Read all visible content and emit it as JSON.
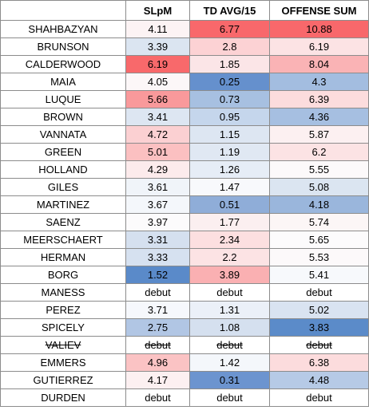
{
  "table": {
    "headers": [
      "",
      "SLpM",
      "TD AVG/15",
      "OFFENSE SUM"
    ],
    "rows": [
      {
        "name": "SHAHBAZYAN",
        "slpm": "4.11",
        "td": "6.77",
        "offense": "10.88",
        "colors": [
          "#fcf3f4",
          "#f8686b",
          "#f8686b"
        ]
      },
      {
        "name": "BRUNSON",
        "slpm": "3.39",
        "td": "2.8",
        "offense": "6.19",
        "colors": [
          "#dbe5f1",
          "#fcd2d4",
          "#fce3e4"
        ]
      },
      {
        "name": "CALDERWOOD",
        "slpm": "6.19",
        "td": "1.85",
        "offense": "8.04",
        "colors": [
          "#f8696b",
          "#fbe5e7",
          "#fab3b5"
        ]
      },
      {
        "name": "MAIA",
        "slpm": "4.05",
        "td": "0.25",
        "offense": "4.3",
        "colors": [
          "#fcf7f8",
          "#6590cd",
          "#a3bde0"
        ]
      },
      {
        "name": "LUQUE",
        "slpm": "5.66",
        "td": "0.73",
        "offense": "6.39",
        "colors": [
          "#f9999b",
          "#a7c0e1",
          "#fcdcdd"
        ]
      },
      {
        "name": "BROWN",
        "slpm": "3.41",
        "td": "0.95",
        "offense": "4.36",
        "colors": [
          "#dde6f2",
          "#c5d6ec",
          "#a6bfe1"
        ]
      },
      {
        "name": "VANNATA",
        "slpm": "4.72",
        "td": "1.15",
        "offense": "5.87",
        "colors": [
          "#fbd0d2",
          "#dde6f2",
          "#fcf0f1"
        ]
      },
      {
        "name": "GREEN",
        "slpm": "5.01",
        "td": "1.19",
        "offense": "6.2",
        "colors": [
          "#fbc0c1",
          "#e0e8f3",
          "#fce3e4"
        ]
      },
      {
        "name": "HOLLAND",
        "slpm": "4.29",
        "td": "1.26",
        "offense": "5.55",
        "colors": [
          "#fcebec",
          "#e6edf6",
          "#fcf9fa"
        ]
      },
      {
        "name": "GILES",
        "slpm": "3.61",
        "td": "1.47",
        "offense": "5.08",
        "colors": [
          "#f0f4f9",
          "#f8f9fc",
          "#dbe5f1"
        ]
      },
      {
        "name": "MARTINEZ",
        "slpm": "3.67",
        "td": "0.51",
        "offense": "4.18",
        "colors": [
          "#f4f7fb",
          "#8fadd8",
          "#9ab6dc"
        ]
      },
      {
        "name": "SAENZ",
        "slpm": "3.97",
        "td": "1.77",
        "offense": "5.74",
        "colors": [
          "#fcfbfc",
          "#fbeff0",
          "#fcf6f6"
        ]
      },
      {
        "name": "MEERSCHAERT",
        "slpm": "3.31",
        "td": "2.34",
        "offense": "5.65",
        "colors": [
          "#d5e0ef",
          "#fcdfe0",
          "#fcfbfc"
        ]
      },
      {
        "name": "HERMAN",
        "slpm": "3.33",
        "td": "2.2",
        "offense": "5.53",
        "colors": [
          "#d6e1f0",
          "#fce3e4",
          "#fcf9fa"
        ]
      },
      {
        "name": "BORG",
        "slpm": "1.52",
        "td": "3.89",
        "offense": "5.41",
        "colors": [
          "#5a8ac9",
          "#fab0b2",
          "#f7f9fc"
        ]
      },
      {
        "name": "MANESS",
        "slpm": "debut",
        "td": "debut",
        "offense": "debut",
        "colors": [
          "#ffffff",
          "#ffffff",
          "#ffffff"
        ]
      },
      {
        "name": "PEREZ",
        "slpm": "3.71",
        "td": "1.31",
        "offense": "5.02",
        "colors": [
          "#f6f8fc",
          "#ebf0f8",
          "#d9e3f1"
        ]
      },
      {
        "name": "SPICELY",
        "slpm": "2.75",
        "td": "1.08",
        "offense": "3.83",
        "colors": [
          "#b1c6e4",
          "#d5e0ef",
          "#5b8bc9"
        ]
      },
      {
        "name": "VALIEV",
        "slpm": "debut",
        "td": "debut",
        "offense": "debut",
        "colors": [
          "#ffffff",
          "#ffffff",
          "#ffffff"
        ],
        "struck": true
      },
      {
        "name": "EMMERS",
        "slpm": "4.96",
        "td": "1.42",
        "offense": "6.38",
        "colors": [
          "#fbc3c4",
          "#f4f7fb",
          "#fcdcdd"
        ]
      },
      {
        "name": "GUTIERREZ",
        "slpm": "4.17",
        "td": "0.31",
        "offense": "4.48",
        "colors": [
          "#fcf0f1",
          "#6c94cf",
          "#b6cae6"
        ]
      },
      {
        "name": "DURDEN",
        "slpm": "debut",
        "td": "debut",
        "offense": "debut",
        "colors": [
          "#ffffff",
          "#ffffff",
          "#ffffff"
        ]
      }
    ]
  }
}
